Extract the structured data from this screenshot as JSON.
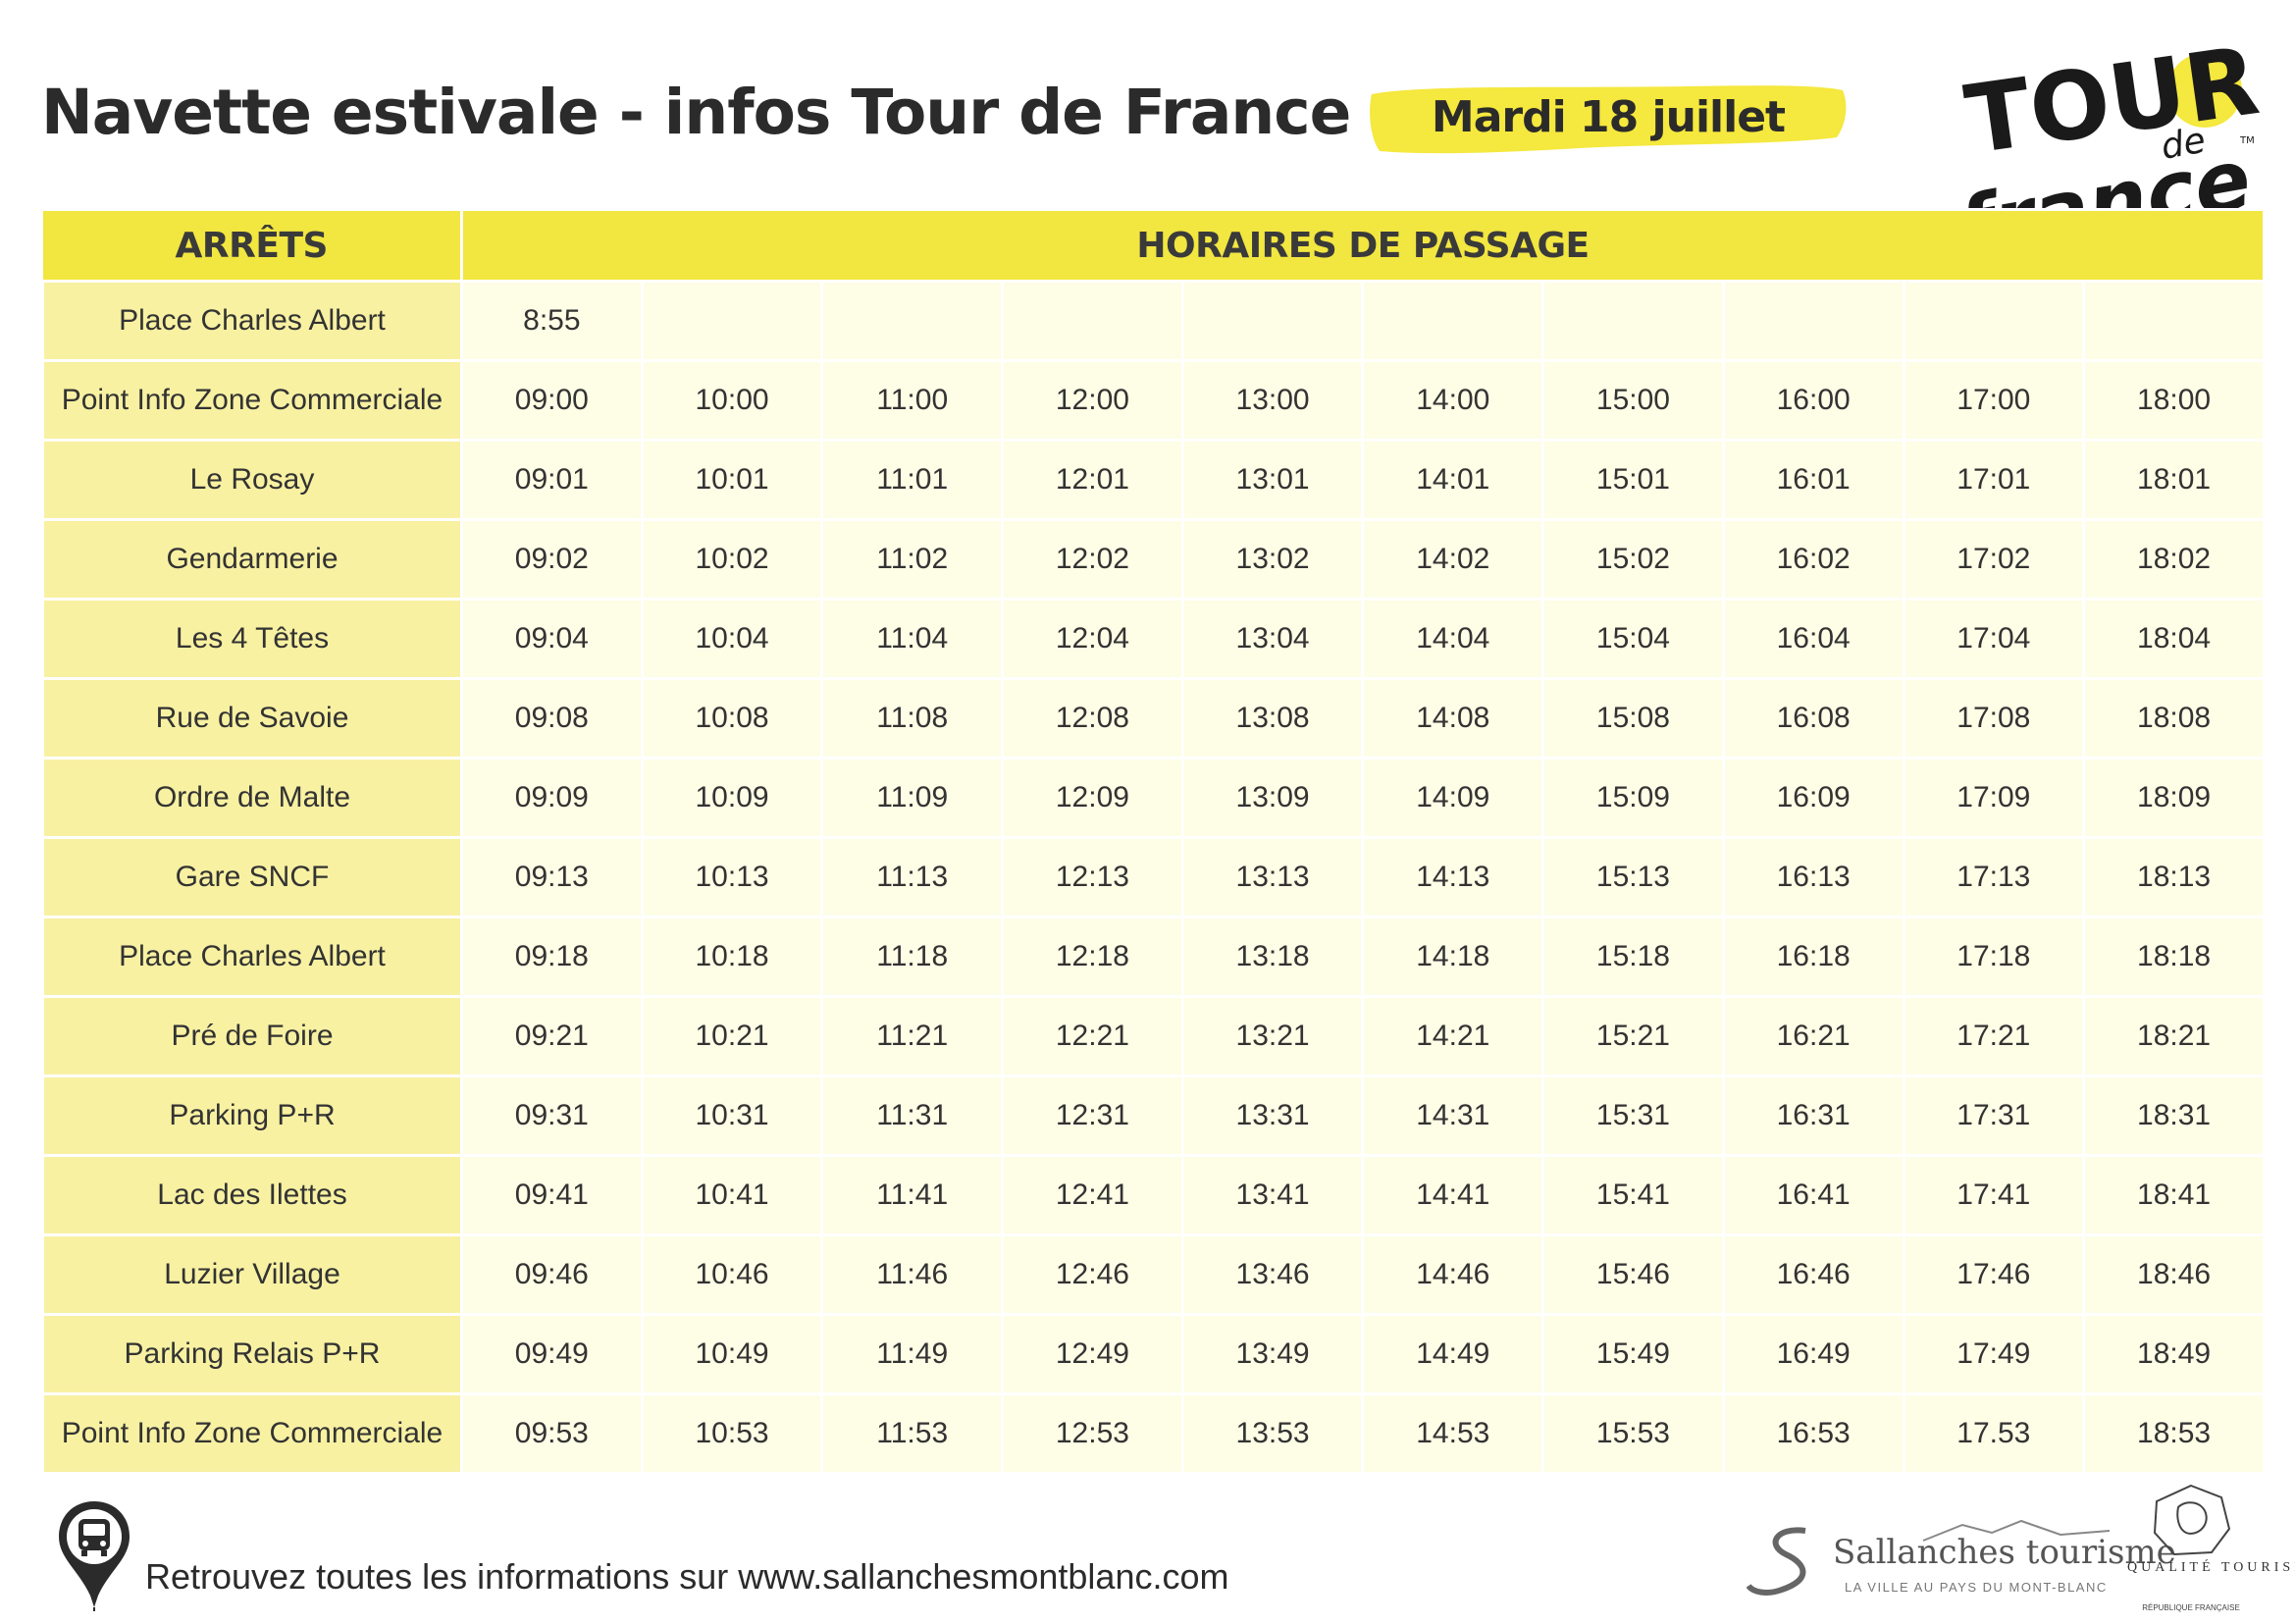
{
  "header": {
    "title": "Navette estivale - infos Tour de France",
    "date": "Mardi 18 juillet",
    "highlight_color": "#f5e83e"
  },
  "table": {
    "columns": [
      "ARRÊTS",
      "HORAIRES DE PASSAGE"
    ],
    "rows": [
      {
        "stop": "Place Charles Albert",
        "times": [
          "8:55",
          "",
          "",
          "",
          "",
          "",
          "",
          "",
          "",
          ""
        ]
      },
      {
        "stop": "Point Info Zone Commerciale",
        "times": [
          "09:00",
          "10:00",
          "11:00",
          "12:00",
          "13:00",
          "14:00",
          "15:00",
          "16:00",
          "17:00",
          "18:00"
        ]
      },
      {
        "stop": "Le Rosay",
        "times": [
          "09:01",
          "10:01",
          "11:01",
          "12:01",
          "13:01",
          "14:01",
          "15:01",
          "16:01",
          "17:01",
          "18:01"
        ]
      },
      {
        "stop": "Gendarmerie",
        "times": [
          "09:02",
          "10:02",
          "11:02",
          "12:02",
          "13:02",
          "14:02",
          "15:02",
          "16:02",
          "17:02",
          "18:02"
        ]
      },
      {
        "stop": "Les 4 Têtes",
        "times": [
          "09:04",
          "10:04",
          "11:04",
          "12:04",
          "13:04",
          "14:04",
          "15:04",
          "16:04",
          "17:04",
          "18:04"
        ]
      },
      {
        "stop": "Rue de Savoie",
        "times": [
          "09:08",
          "10:08",
          "11:08",
          "12:08",
          "13:08",
          "14:08",
          "15:08",
          "16:08",
          "17:08",
          "18:08"
        ]
      },
      {
        "stop": "Ordre de Malte",
        "times": [
          "09:09",
          "10:09",
          "11:09",
          "12:09",
          "13:09",
          "14:09",
          "15:09",
          "16:09",
          "17:09",
          "18:09"
        ]
      },
      {
        "stop": "Gare SNCF",
        "times": [
          "09:13",
          "10:13",
          "11:13",
          "12:13",
          "13:13",
          "14:13",
          "15:13",
          "16:13",
          "17:13",
          "18:13"
        ]
      },
      {
        "stop": "Place Charles Albert",
        "times": [
          "09:18",
          "10:18",
          "11:18",
          "12:18",
          "13:18",
          "14:18",
          "15:18",
          "16:18",
          "17:18",
          "18:18"
        ]
      },
      {
        "stop": "Pré de Foire",
        "times": [
          "09:21",
          "10:21",
          "11:21",
          "12:21",
          "13:21",
          "14:21",
          "15:21",
          "16:21",
          "17:21",
          "18:21"
        ]
      },
      {
        "stop": "Parking P+R",
        "times": [
          "09:31",
          "10:31",
          "11:31",
          "12:31",
          "13:31",
          "14:31",
          "15:31",
          "16:31",
          "17:31",
          "18:31"
        ]
      },
      {
        "stop": "Lac des Ilettes",
        "times": [
          "09:41",
          "10:41",
          "11:41",
          "12:41",
          "13:41",
          "14:41",
          "15:41",
          "16:41",
          "17:41",
          "18:41"
        ]
      },
      {
        "stop": "Luzier Village",
        "times": [
          "09:46",
          "10:46",
          "11:46",
          "12:46",
          "13:46",
          "14:46",
          "15:46",
          "16:46",
          "17:46",
          "18:46"
        ]
      },
      {
        "stop": "Parking Relais P+R",
        "times": [
          "09:49",
          "10:49",
          "11:49",
          "12:49",
          "13:49",
          "14:49",
          "15:49",
          "16:49",
          "17:49",
          "18:49"
        ]
      },
      {
        "stop": "Point Info Zone Commerciale",
        "times": [
          "09:53",
          "10:53",
          "11:53",
          "12:53",
          "13:53",
          "14:53",
          "15:53",
          "16:53",
          "17.53",
          "18:53"
        ]
      }
    ]
  },
  "footer": {
    "text": "Retrouvez toutes les informations sur www.sallanchesmontblanc.com",
    "icon": "bus-pin-icon"
  },
  "logos": {
    "tour_de_france": {
      "line1": "TOUR",
      "line2": "de",
      "line3": "france",
      "tm": "TM"
    },
    "sallanches": {
      "name": "Sallanches tourisme",
      "tagline": "LA VILLE AU PAYS DU MONT-BLANC"
    },
    "qualite": {
      "label": "QUALITÉ TOURISME",
      "sub": "RÉPUBLIQUE FRANÇAISE"
    }
  }
}
